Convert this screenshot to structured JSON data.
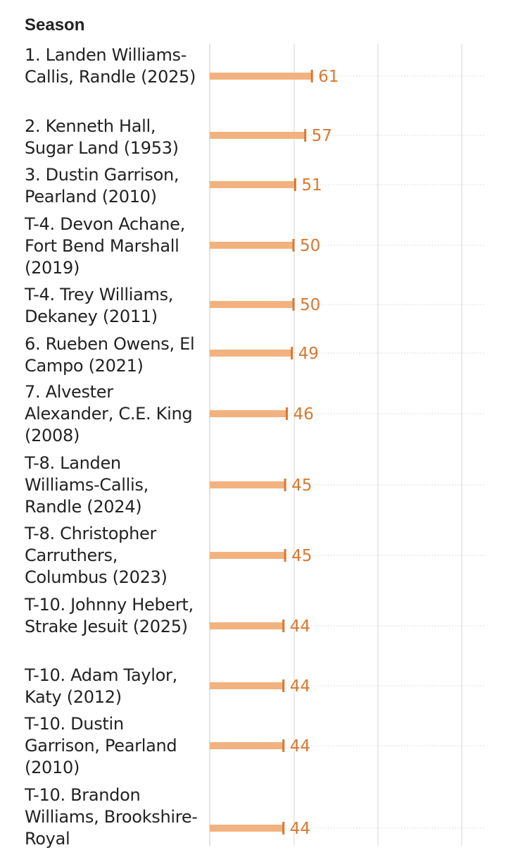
{
  "header": {
    "title": "Season"
  },
  "colors": {
    "bar": "#f2b27f",
    "bar_cap": "#d9782f",
    "value_text": "#d9782f",
    "grid": "#dddddd"
  },
  "chart_data": {
    "type": "bar",
    "orientation": "horizontal",
    "title": "",
    "xlabel": "",
    "ylabel": "Season",
    "categories": [
      "1. Landen Williams-Callis, Randle (2025)",
      "2. Kenneth Hall, Sugar Land (1953)",
      "3. Dustin Garrison, Pearland (2010)",
      "T-4. Devon Achane, Fort Bend Marshall (2019)",
      "T-4. Trey Williams, Dekaney (2011)",
      "6. Rueben Owens, El Campo (2021)",
      "7. Alvester Alexander, C.E. King (2008)",
      "T-8. Landen Williams-Callis, Randle (2024)",
      "T-8. Christopher Carruthers, Columbus (2023)",
      "T-10. Johnny Hebert, Strake Jesuit (2025)",
      "T-10. Adam Taylor, Katy (2012)",
      "T-10. Dustin Garrison, Pearland (2010)",
      "T-10. Brandon Williams, Brookshire-Royal"
    ],
    "values": [
      61,
      57,
      51,
      50,
      50,
      49,
      46,
      45,
      45,
      44,
      44,
      44,
      44
    ],
    "xlim": [
      0,
      160
    ],
    "grid": true
  }
}
